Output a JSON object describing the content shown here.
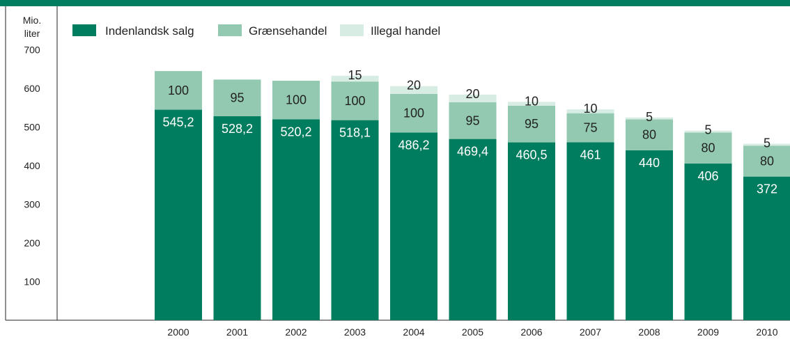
{
  "chart_data": {
    "type": "bar",
    "stacked": true,
    "y_unit": [
      "Mio.",
      "liter"
    ],
    "categories": [
      "2000",
      "2001",
      "2002",
      "2003",
      "2004",
      "2005",
      "2006",
      "2007",
      "2008",
      "2009",
      "2010"
    ],
    "series": [
      {
        "name": "Indenlandsk salg",
        "color": "#007c5e",
        "values": [
          545.2,
          528.2,
          520.2,
          518.1,
          486.2,
          469.4,
          460.5,
          461,
          440,
          406,
          372
        ],
        "labels": [
          "545,2",
          "528,2",
          "520,2",
          "518,1",
          "486,2",
          "469,4",
          "460,5",
          "461",
          "440",
          "406",
          "372"
        ]
      },
      {
        "name": "Grænsehandel",
        "color": "#92c9b0",
        "values": [
          100,
          95,
          100,
          100,
          100,
          95,
          95,
          75,
          80,
          80,
          80
        ],
        "labels": [
          "100",
          "95",
          "100",
          "100",
          "100",
          "95",
          "95",
          "75",
          "80",
          "80",
          "80"
        ]
      },
      {
        "name": "Illegal handel",
        "color": "#d7ece2",
        "values": [
          0,
          0,
          0,
          15,
          20,
          20,
          10,
          10,
          5,
          5,
          5
        ],
        "labels": [
          "",
          "",
          "",
          "15",
          "20",
          "20",
          "10",
          "10",
          "5",
          "5",
          "5"
        ]
      }
    ],
    "yticks": [
      100,
      200,
      300,
      400,
      500,
      600,
      700
    ],
    "ylim": [
      0,
      740
    ],
    "legend_position": "top-left",
    "grid": false
  }
}
